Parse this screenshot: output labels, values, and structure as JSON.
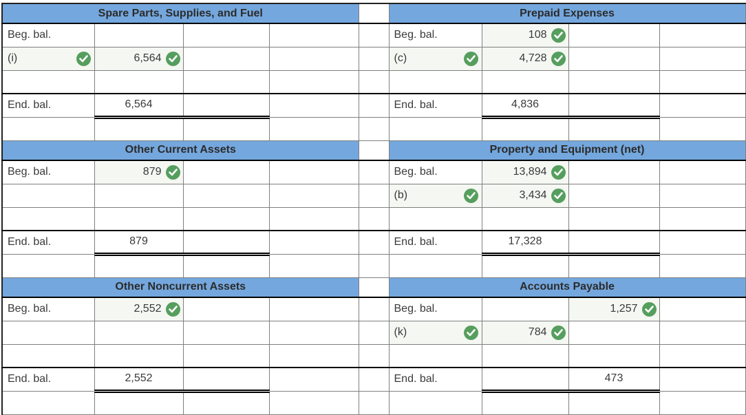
{
  "palette": {
    "header_bg": "#74a7dd",
    "header_text": "#2b2b2b",
    "cell_text": "#3a3a3a",
    "answered_cell_bg": "#f4f7f2",
    "check_green": "#569e5e",
    "grid_line": "#7f7f7f",
    "strong_line": "#000000"
  },
  "icons": {
    "check": {
      "name": "check-circle-icon",
      "glyph": "✓"
    }
  },
  "accounts": [
    {
      "title": "Spare Parts, Supplies, and Fuel",
      "rows": [
        {
          "label": "Beg. bal."
        },
        {
          "label": "(i)",
          "label_check": true,
          "debit": "6,564",
          "debit_check": true
        },
        {},
        {
          "label": "End. bal.",
          "debit": "6,564",
          "end": true
        },
        {}
      ]
    },
    {
      "title": "Prepaid Expenses",
      "rows": [
        {
          "label": "Beg. bal.",
          "debit": "108",
          "debit_check": true
        },
        {
          "label": "(c)",
          "label_check": true,
          "debit": "4,728",
          "debit_check": true
        },
        {},
        {
          "label": "End. bal.",
          "debit": "4,836",
          "end": true
        },
        {}
      ]
    },
    {
      "title": "Other Current Assets",
      "rows": [
        {
          "label": "Beg. bal.",
          "debit": "879",
          "debit_check": true
        },
        {},
        {},
        {
          "label": "End. bal.",
          "debit": "879",
          "end": true
        },
        {}
      ]
    },
    {
      "title": "Property and Equipment (net)",
      "rows": [
        {
          "label": "Beg. bal.",
          "debit": "13,894",
          "debit_check": true
        },
        {
          "label": "(b)",
          "label_check": true,
          "debit": "3,434",
          "debit_check": true
        },
        {},
        {
          "label": "End. bal.",
          "debit": "17,328",
          "end": true
        },
        {}
      ]
    },
    {
      "title": "Other Noncurrent Assets",
      "rows": [
        {
          "label": "Beg. bal.",
          "debit": "2,552",
          "debit_check": true
        },
        {},
        {},
        {
          "label": "End. bal.",
          "debit": "2,552",
          "end": true
        },
        {}
      ]
    },
    {
      "title": "Accounts Payable",
      "rows": [
        {
          "label": "Beg. bal.",
          "credit": "1,257",
          "credit_check": true
        },
        {
          "label": "(k)",
          "label_check": true,
          "debit": "784",
          "debit_check": true
        },
        {},
        {
          "label": "End. bal.",
          "credit": "473",
          "end": true
        },
        {}
      ]
    }
  ]
}
